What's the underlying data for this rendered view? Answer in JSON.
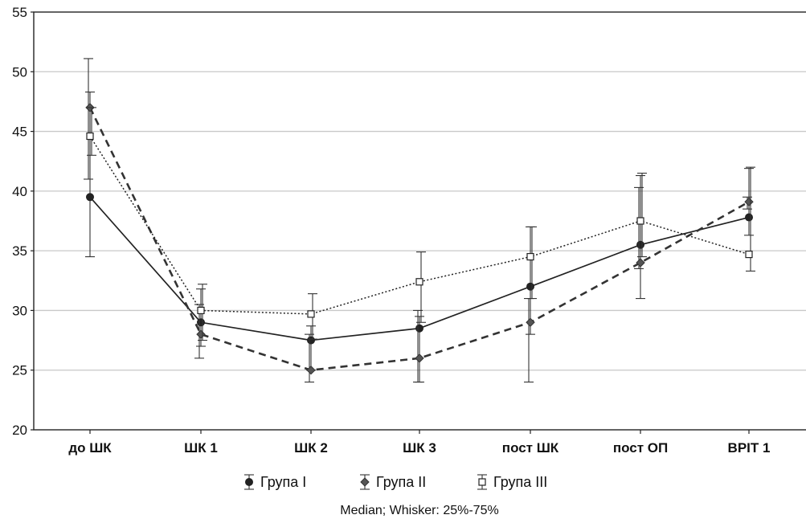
{
  "chart_data": {
    "type": "line",
    "categories": [
      "до ШК",
      "ШК 1",
      "ШК 2",
      "ШК 3",
      "пост ШК",
      "пост ОП",
      "ВРІТ 1"
    ],
    "ylim": [
      20,
      55
    ],
    "yticks": [
      20,
      25,
      30,
      35,
      40,
      45,
      50,
      55
    ],
    "grid": true,
    "legend_position": "bottom",
    "series": [
      {
        "name": "Група I",
        "marker": "filled-circle",
        "line_style": "solid",
        "color": "#222222",
        "values": [
          39.5,
          29.0,
          27.5,
          28.5,
          32.0,
          35.5,
          37.8
        ],
        "q1": [
          34.5,
          27.0,
          25.0,
          24.0,
          28.0,
          31.0,
          36.3
        ],
        "q3": [
          48.3,
          31.8,
          28.7,
          29.5,
          37.0,
          41.3,
          41.9
        ]
      },
      {
        "name": "Група II",
        "marker": "filled-diamond",
        "line_style": "dashed",
        "color": "#333333",
        "values": [
          47.0,
          28.0,
          25.0,
          26.0,
          29.0,
          34.0,
          39.1
        ],
        "q1": [
          41.0,
          26.0,
          24.0,
          24.0,
          24.0,
          33.5,
          38.5
        ],
        "q3": [
          51.1,
          30.5,
          28.0,
          30.0,
          31.0,
          40.3,
          39.5
        ]
      },
      {
        "name": "Група III",
        "marker": "open-square",
        "line_style": "dotted",
        "color": "#222222",
        "values": [
          44.6,
          30.0,
          29.7,
          32.4,
          34.5,
          37.5,
          34.7
        ],
        "q1": [
          43.0,
          27.5,
          27.6,
          29.0,
          31.0,
          34.5,
          33.3
        ],
        "q3": [
          47.0,
          32.2,
          31.4,
          34.9,
          37.0,
          41.5,
          42.0
        ]
      }
    ],
    "footnote": "Median; Whisker: 25%-75%"
  }
}
